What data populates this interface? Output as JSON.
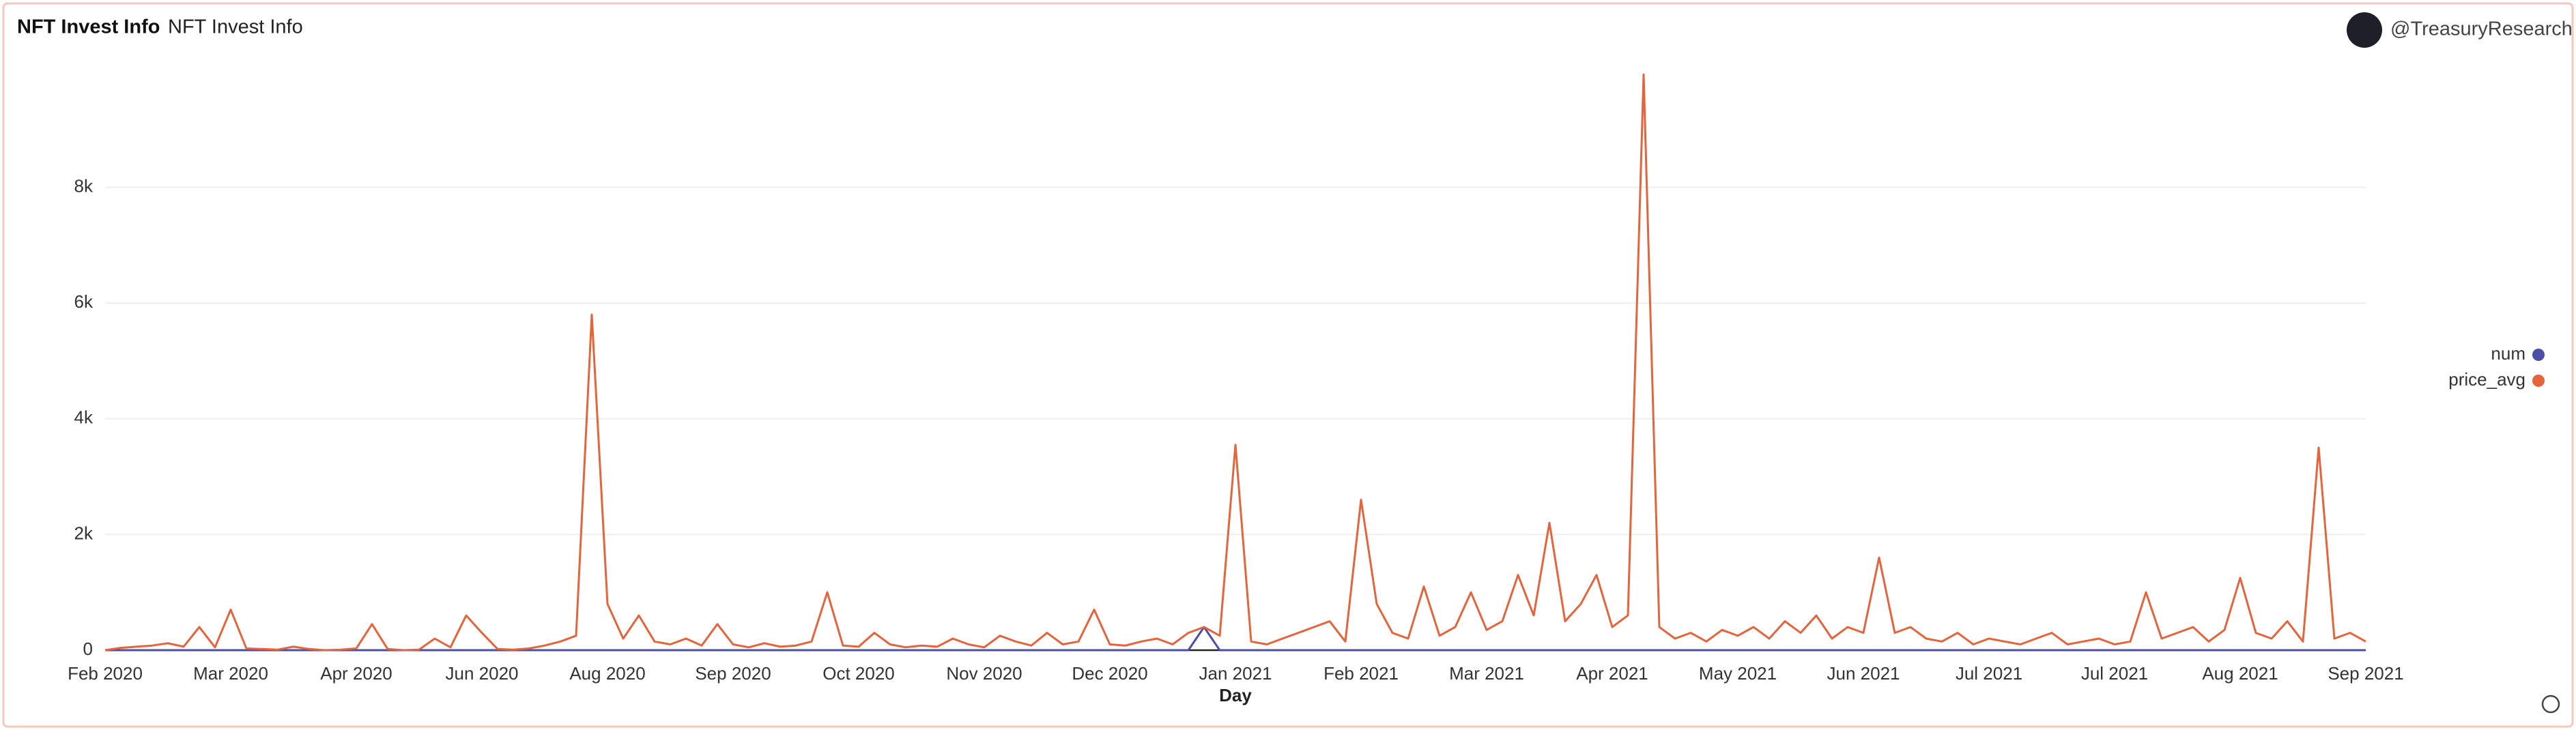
{
  "chart_data": {
    "type": "line",
    "dashboard_title": "NFT Invest Info",
    "title": "NFT Invest Info",
    "author": "@TreasuryResearch",
    "xlabel": "Day",
    "categories": [
      "Feb 2020",
      null,
      null,
      null,
      null,
      null,
      null,
      null,
      "Mar 2020",
      null,
      null,
      null,
      null,
      null,
      null,
      null,
      "Apr 2020",
      null,
      null,
      null,
      null,
      null,
      null,
      null,
      "Jun 2020",
      null,
      null,
      null,
      null,
      null,
      null,
      null,
      "Aug 2020",
      null,
      null,
      null,
      null,
      null,
      null,
      null,
      "Sep 2020",
      null,
      null,
      null,
      null,
      null,
      null,
      null,
      "Oct 2020",
      null,
      null,
      null,
      null,
      null,
      null,
      null,
      "Nov 2020",
      null,
      null,
      null,
      null,
      null,
      null,
      null,
      "Dec 2020",
      null,
      null,
      null,
      null,
      null,
      null,
      null,
      "Jan 2021",
      null,
      null,
      null,
      null,
      null,
      null,
      null,
      "Feb 2021",
      null,
      null,
      null,
      null,
      null,
      null,
      null,
      "Mar 2021",
      null,
      null,
      null,
      null,
      null,
      null,
      null,
      "Apr 2021",
      null,
      null,
      null,
      null,
      null,
      null,
      null,
      "May 2021",
      null,
      null,
      null,
      null,
      null,
      null,
      null,
      "Jun 2021",
      null,
      null,
      null,
      null,
      null,
      null,
      null,
      "Jul 2021",
      null,
      null,
      null,
      null,
      null,
      null,
      null,
      "Jul 2021",
      null,
      null,
      null,
      null,
      null,
      null,
      null,
      "Aug 2021",
      null,
      null,
      null,
      null,
      null,
      null,
      null,
      "Sep 2021"
    ],
    "series": [
      {
        "name": "num",
        "color": "#4b4fa6",
        "values": [
          0,
          0,
          0,
          0,
          0,
          0,
          0,
          0,
          0,
          0,
          0,
          0,
          0,
          0,
          0,
          0,
          0,
          0,
          0,
          0,
          0,
          0,
          0,
          0,
          0,
          0,
          0,
          0,
          0,
          0,
          0,
          0,
          0,
          0,
          0,
          0,
          0,
          0,
          0,
          0,
          0,
          0,
          0,
          0,
          0,
          0,
          0,
          0,
          0,
          0,
          0,
          0,
          0,
          0,
          0,
          0,
          0,
          0,
          0,
          0,
          0,
          0,
          0,
          0,
          0,
          0,
          0,
          0,
          0,
          0,
          400,
          0,
          0,
          0,
          0,
          0,
          0,
          0,
          0,
          0,
          0,
          0,
          0,
          0,
          0,
          0,
          0,
          0,
          0,
          0,
          0,
          0,
          0,
          0,
          0,
          0,
          0,
          0,
          0,
          0,
          0,
          0,
          0,
          0,
          0,
          0,
          0,
          0,
          0,
          0,
          0,
          0,
          0,
          0,
          0,
          0,
          0,
          0,
          0,
          0,
          0,
          0,
          0,
          0,
          0,
          0,
          0,
          0,
          0,
          0,
          0,
          0,
          0,
          0,
          0,
          0,
          0,
          0,
          0,
          0,
          0,
          0,
          0,
          0,
          0
        ]
      },
      {
        "name": "price_avg",
        "color": "#e4643c",
        "values": [
          0,
          40,
          60,
          80,
          120,
          60,
          400,
          50,
          700,
          30,
          20,
          10,
          60,
          20,
          0,
          10,
          30,
          450,
          20,
          0,
          10,
          200,
          50,
          600,
          300,
          20,
          10,
          30,
          80,
          150,
          250,
          5800,
          800,
          200,
          600,
          150,
          100,
          200,
          80,
          450,
          100,
          50,
          120,
          60,
          80,
          150,
          1000,
          80,
          60,
          300,
          100,
          50,
          80,
          60,
          200,
          100,
          50,
          250,
          150,
          80,
          300,
          100,
          150,
          700,
          100,
          80,
          150,
          200,
          100,
          300,
          400,
          250,
          3550,
          150,
          100,
          200,
          300,
          400,
          500,
          150,
          2600,
          800,
          300,
          200,
          1100,
          250,
          400,
          1000,
          350,
          500,
          1300,
          600,
          2200,
          500,
          800,
          1300,
          400,
          600,
          9950,
          400,
          200,
          300,
          150,
          350,
          250,
          400,
          200,
          500,
          300,
          600,
          200,
          400,
          300,
          1600,
          300,
          400,
          200,
          150,
          300,
          100,
          200,
          150,
          100,
          200,
          300,
          100,
          150,
          200,
          100,
          150,
          1000,
          200,
          300,
          400,
          150,
          350,
          1250,
          300,
          200,
          500,
          150,
          3500,
          200,
          300,
          150
        ]
      }
    ],
    "ylim": [
      0,
      10000
    ],
    "yticks": [
      0,
      {
        "value": 2000,
        "label": "2k"
      },
      {
        "value": 4000,
        "label": "4k"
      },
      {
        "value": 6000,
        "label": "6k"
      },
      {
        "value": 8000,
        "label": "8k"
      }
    ],
    "grid": true
  }
}
